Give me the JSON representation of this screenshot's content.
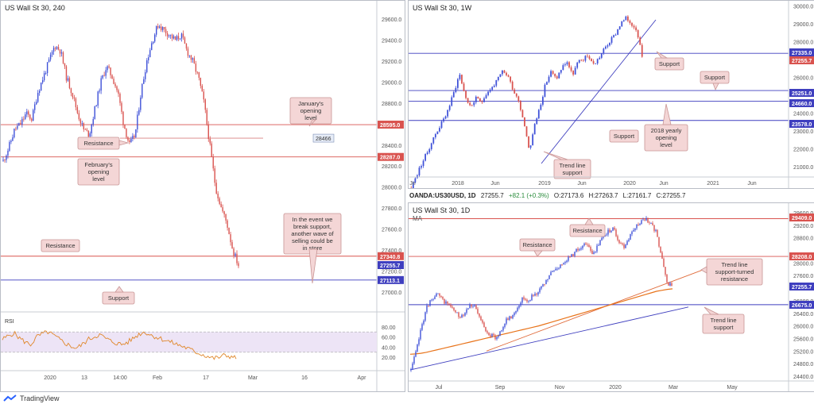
{
  "branding": {
    "label": "TradingView"
  },
  "colors": {
    "bull": "#3f51d8",
    "bear": "#d9534f",
    "resistance_line": "#d9534f",
    "support_line": "#3f3fbf",
    "ma_line": "#e8731a",
    "callout_bg": "#f4d6d6",
    "callout_border": "#c89595",
    "rsi_line": "#e0872a",
    "rsi_band": "#ede4f6"
  },
  "panels": {
    "left": {
      "title": "US Wall St 30, 240",
      "price_ticks": [
        "29600.0",
        "29400.0",
        "29200.0",
        "29000.0",
        "28800.0",
        "28600.0",
        "28400.0",
        "28200.0",
        "28000.0",
        "27800.0",
        "27600.0",
        "27400.0",
        "27200.0",
        "27000.0"
      ],
      "time_ticks": [
        "2020",
        "13",
        "14:00",
        "Feb",
        "17",
        "Mar",
        "16",
        "Apr"
      ],
      "price_labels": [
        {
          "text": "28595.0",
          "kind": "red"
        },
        {
          "text": "28287.0",
          "kind": "red"
        },
        {
          "text": "27340.8",
          "kind": "red"
        },
        {
          "text": "27255.7",
          "kind": "blue"
        },
        {
          "text": "27113.1",
          "kind": "blue"
        }
      ],
      "level_tag": "28466",
      "callouts": {
        "januarys_opening": "January's opening level",
        "resistance_a": "Resistance",
        "februarys_opening": "February's opening level",
        "event_note": "In the event we break support, another wave of selling could be in store",
        "resistance_b": "Resistance",
        "support": "Support"
      },
      "rsi": {
        "label": "RSI",
        "ticks": [
          "80.00",
          "60.00",
          "40.00",
          "20.00"
        ]
      }
    },
    "top_right": {
      "title": "US Wall St 30, 1W",
      "price_ticks": [
        "30000.0",
        "29000.0",
        "28000.0",
        "26000.0",
        "24000.0",
        "23000.0",
        "22000.0",
        "21000.0"
      ],
      "time_ticks": [
        "Jn",
        "2018",
        "Jun",
        "2019",
        "Jun",
        "2020",
        "Jun",
        "2021",
        "Jun"
      ],
      "price_labels": [
        {
          "text": "27335.0",
          "kind": "blue"
        },
        {
          "text": "27255.7",
          "kind": "red"
        },
        {
          "text": "25251.0",
          "kind": "blue"
        },
        {
          "text": "24660.0",
          "kind": "blue"
        },
        {
          "text": "23578.0",
          "kind": "blue"
        }
      ],
      "callouts": {
        "support_a": "Support",
        "support_b": "Support",
        "support_c": "Support",
        "yearly_opening": "2018 yearly opening level",
        "trend_support": "Trend line support"
      }
    },
    "bottom_right": {
      "title": "US Wall St 30, 1D",
      "info": {
        "symbol": "OANDA:US30USD, 1D",
        "last": "27255.7",
        "change": "+82.1 (+0.3%)",
        "open": "O:27173.6",
        "high": "H:27263.7",
        "low": "L:27161.7",
        "close": "C:27255.7"
      },
      "ma_label": "MA",
      "price_ticks": [
        "29600.0",
        "29200.0",
        "28800.0",
        "28000.0",
        "27600.0",
        "27200.0",
        "26800.0",
        "26400.0",
        "26000.0",
        "25600.0",
        "25200.0",
        "24800.0",
        "24400.0"
      ],
      "time_ticks": [
        "Jul",
        "Sep",
        "Nov",
        "2020",
        "Mar",
        "May"
      ],
      "price_labels": [
        {
          "text": "29409.0",
          "kind": "red"
        },
        {
          "text": "28208.0",
          "kind": "red"
        },
        {
          "text": "27255.7",
          "kind": "blue"
        },
        {
          "text": "26675.0",
          "kind": "blue"
        }
      ],
      "callouts": {
        "resistance_a": "Resistance",
        "resistance_b": "Resistance",
        "trend_turned": "Trend line support-turned resistance",
        "trend_support": "Trend line support"
      }
    }
  },
  "chart_data": [
    {
      "type": "candlestick",
      "title": "US Wall St 30, 240",
      "ylim": [
        26900,
        29700
      ],
      "key_levels": [
        28595.0,
        28466,
        28287.0,
        27340.8,
        27255.7,
        27113.1
      ],
      "close_path": [
        28250,
        28380,
        28550,
        28600,
        28700,
        28650,
        28900,
        29050,
        29200,
        29350,
        29300,
        29050,
        28900,
        28700,
        28550,
        28500,
        28750,
        29000,
        29150,
        29050,
        28900,
        28600,
        28400,
        28500,
        28900,
        29200,
        29400,
        29550,
        29500,
        29450,
        29400,
        29450,
        29300,
        29200,
        29050,
        28800,
        28400,
        28000,
        27800,
        27650,
        27400,
        27255.7
      ]
    },
    {
      "type": "line",
      "title": "RSI",
      "ylim": [
        0,
        100
      ],
      "values": [
        55,
        62,
        68,
        58,
        50,
        45,
        60,
        66,
        70,
        63,
        55,
        48,
        42,
        38,
        45,
        55,
        60,
        65,
        58,
        52,
        48,
        45,
        50,
        58,
        66,
        70,
        64,
        60,
        56,
        52,
        48,
        44,
        40,
        35,
        30,
        26,
        22,
        18,
        20,
        24,
        22,
        18
      ]
    },
    {
      "type": "candlestick",
      "title": "US Wall St 30, 1W",
      "ylim": [
        20500,
        30100
      ],
      "key_levels": [
        27335.0,
        27255.7,
        25251.0,
        24660.0,
        23578.0
      ],
      "close_path": [
        19800,
        20500,
        21200,
        21800,
        22500,
        23100,
        23600,
        24300,
        25200,
        26200,
        25000,
        24300,
        24800,
        24600,
        25100,
        25400,
        25800,
        26300,
        26100,
        25300,
        24700,
        23500,
        21900,
        23300,
        24400,
        25600,
        26300,
        25900,
        26500,
        26900,
        26100,
        26800,
        27000,
        27200,
        26700,
        27100,
        27600,
        28000,
        28400,
        29000,
        29300,
        29000,
        28700,
        27255.7
      ]
    },
    {
      "type": "candlestick",
      "title": "US Wall St 30, 1D",
      "ylim": [
        24300,
        29800
      ],
      "key_levels": [
        29409.0,
        28208.0,
        27255.7,
        26675.0
      ],
      "close_path": [
        24600,
        25200,
        26000,
        26600,
        26900,
        27000,
        26800,
        26700,
        26500,
        26300,
        26400,
        26700,
        26600,
        26200,
        25900,
        25700,
        25600,
        25900,
        26200,
        26300,
        26600,
        26900,
        26800,
        27000,
        27100,
        27300,
        27600,
        27800,
        27900,
        28100,
        28200,
        28400,
        28500,
        28600,
        28300,
        28500,
        28800,
        29000,
        29100,
        28700,
        28500,
        28800,
        29100,
        29300,
        29400,
        29300,
        29000,
        28300,
        27400,
        27255.7
      ],
      "ma_path": [
        25100,
        25110,
        25130,
        25160,
        25200,
        25240,
        25280,
        25320,
        25360,
        25400,
        25440,
        25480,
        25520,
        25560,
        25600,
        25640,
        25680,
        25720,
        25760,
        25800,
        25840,
        25880,
        25920,
        25960,
        26000,
        26050,
        26100,
        26150,
        26200,
        26250,
        26300,
        26350,
        26400,
        26450,
        26500,
        26550,
        26600,
        26650,
        26700,
        26750,
        26800,
        26850,
        26900,
        26950,
        27000,
        27050,
        27100,
        27130,
        27160,
        27180
      ]
    }
  ]
}
